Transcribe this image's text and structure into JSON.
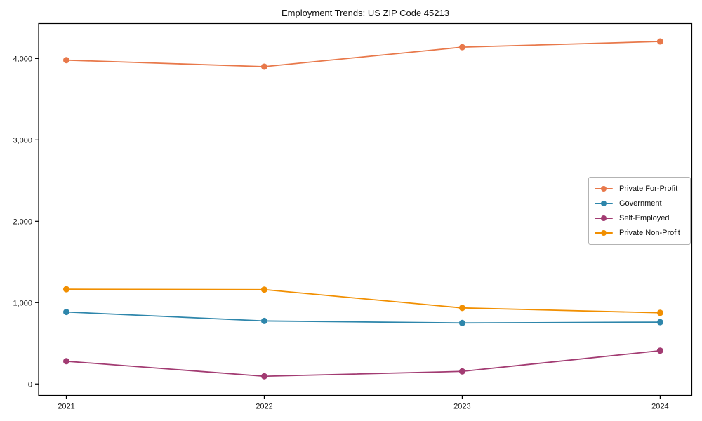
{
  "chart_data": {
    "type": "line",
    "title": "Employment Trends: US ZIP Code 45213",
    "xlabel": "",
    "ylabel": "",
    "x": [
      2021,
      2022,
      2023,
      2024
    ],
    "x_tick_labels": [
      "2021",
      "2022",
      "2023",
      "2024"
    ],
    "y_ticks": [
      0,
      1000,
      2000,
      3000,
      4000
    ],
    "y_tick_labels": [
      "0",
      "1,000",
      "2,000",
      "3,000",
      "4,000"
    ],
    "xlim": [
      2020.86,
      2024.16
    ],
    "ylim": [
      -140,
      4430
    ],
    "grid": false,
    "legend_position": "center right",
    "series": [
      {
        "name": "Private For-Profit",
        "color": "#E8784A",
        "values": [
          3980,
          3900,
          4140,
          4210
        ]
      },
      {
        "name": "Government",
        "color": "#2E86AB",
        "values": [
          885,
          775,
          750,
          760
        ]
      },
      {
        "name": "Self-Employed",
        "color": "#A23B72",
        "values": [
          280,
          95,
          155,
          410
        ]
      },
      {
        "name": "Private Non-Profit",
        "color": "#F18F01",
        "values": [
          1165,
          1160,
          935,
          875
        ]
      }
    ]
  }
}
